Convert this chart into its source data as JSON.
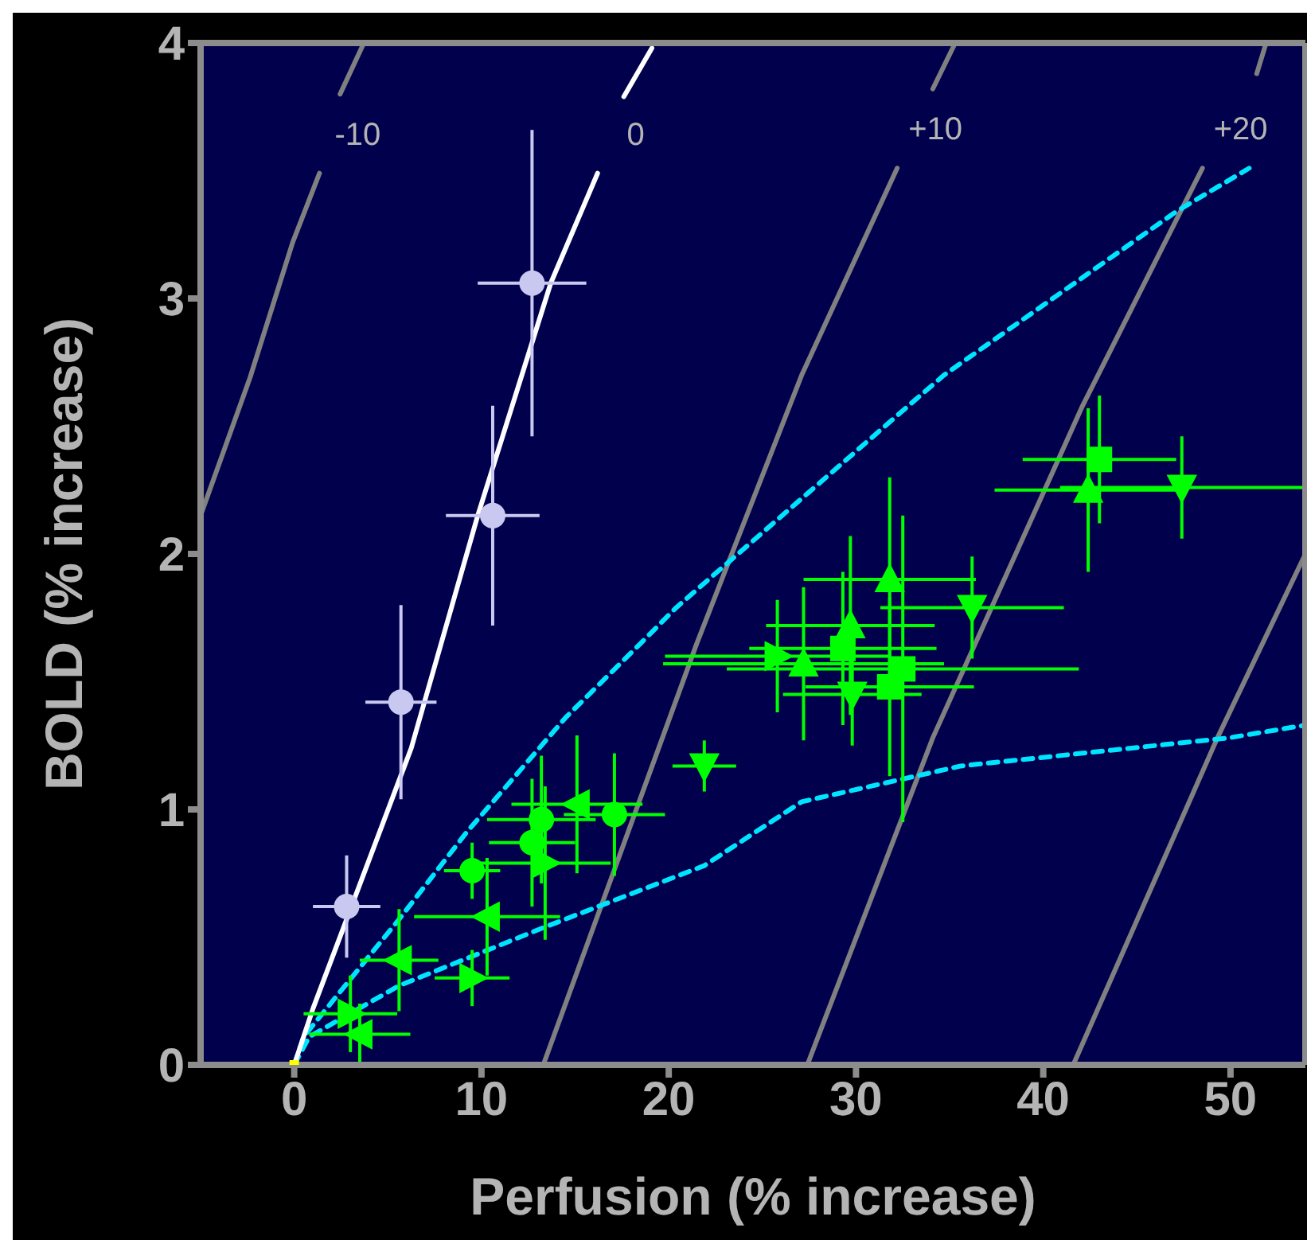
{
  "chart_data": {
    "type": "scatter",
    "xlabel": "Perfusion (% increase)",
    "ylabel": "BOLD (% increase)",
    "xlim": [
      -5,
      54
    ],
    "ylim": [
      0,
      4
    ],
    "xticks": [
      0,
      10,
      20,
      30,
      40,
      50
    ],
    "yticks": [
      0,
      1,
      2,
      3,
      4
    ],
    "grid": false,
    "series": [
      {
        "type": "line",
        "name": "-10",
        "color": "#808080",
        "line_style": "solid",
        "marker": "none",
        "x": [
          -5,
          -2.36,
          -0.08,
          1.35,
          1.9,
          2.45,
          3.72
        ],
        "values": [
          2.15,
          2.69,
          3.22,
          3.49,
          null,
          3.8,
          4.0
        ]
      },
      {
        "type": "line",
        "color": "#808080",
        "line_style": "solid",
        "marker": "none",
        "x": [
          41.6,
          49.3,
          54
        ],
        "values": [
          0,
          1.28,
          2.0
        ]
      },
      {
        "type": "line",
        "name": "+10",
        "color": "#808080",
        "line_style": "solid",
        "marker": "none",
        "x": [
          13.3,
          21.5,
          27.1,
          32.2,
          33.2,
          34.1,
          35.3
        ],
        "values": [
          0,
          1.65,
          2.7,
          3.51,
          null,
          3.82,
          4.0
        ]
      },
      {
        "type": "line",
        "name": "+20",
        "color": "#808080",
        "line_style": "solid",
        "marker": "none",
        "x": [
          27.4,
          34.1,
          42.1,
          48.5,
          50.0,
          51.4,
          51.9
        ],
        "values": [
          0,
          1.28,
          2.58,
          3.51,
          null,
          3.88,
          4.0
        ]
      },
      {
        "type": "line",
        "color": "#00e5ff",
        "line_style": "dashed",
        "marker": "none",
        "x": [
          0,
          0.5,
          5.6,
          9.2,
          14.5,
          18.5,
          20.4,
          32.8,
          34.7,
          47.1,
          51.0
        ],
        "values": [
          0,
          0.11,
          0.57,
          0.91,
          1.36,
          1.65,
          1.79,
          2.58,
          2.7,
          3.34,
          3.51
        ]
      },
      {
        "type": "line",
        "color": "#00e5ff",
        "line_style": "dashed",
        "marker": "none",
        "x": [
          0,
          0.8,
          5.6,
          13.4,
          21.9,
          27.1,
          35.6,
          49.9,
          54
        ],
        "values": [
          0,
          0.11,
          0.31,
          0.54,
          0.78,
          1.03,
          1.17,
          1.28,
          1.33
        ]
      },
      {
        "type": "line",
        "name": "0",
        "color": "#ffffff",
        "line_style": "solid",
        "marker": "none",
        "x": [
          0,
          1.0,
          6.25,
          9.8,
          13.7,
          16.2,
          16.9,
          17.6,
          19.1
        ],
        "values": [
          0,
          0.22,
          1.24,
          2.15,
          3.06,
          3.49,
          null,
          3.79,
          3.98
        ]
      },
      {
        "type": "scatter",
        "color": "#c8c8f0",
        "marker": "circle",
        "x": [
          2.8,
          5.7,
          10.6,
          12.7
        ],
        "values": [
          0.62,
          1.42,
          2.15,
          3.06
        ],
        "xerrors": [
          1.8,
          1.9,
          2.5,
          2.9
        ],
        "errors": [
          0.2,
          0.38,
          0.43,
          0.6
        ]
      },
      {
        "type": "scatter",
        "color": "#00ff00",
        "marker": "circle",
        "x": [
          9.5,
          12.7,
          13.2,
          17.1
        ],
        "values": [
          0.76,
          0.87,
          0.96,
          0.98
        ],
        "xerrors": [
          1.5,
          2.3,
          2.9,
          2.7
        ],
        "errors": [
          0.11,
          0.25,
          0.25,
          0.24
        ]
      },
      {
        "type": "scatter",
        "color": "#00ff00",
        "marker": "triangle",
        "x": [
          27.2,
          29.7,
          31.8,
          42.4
        ],
        "values": [
          1.57,
          1.72,
          1.9,
          2.25
        ],
        "xerrors": [
          7.5,
          4.5,
          4.6,
          5
        ],
        "errors": [
          0.3,
          0.35,
          0.4,
          0.32
        ]
      },
      {
        "type": "scatter",
        "color": "#00ff00",
        "marker": "triangle-down",
        "x": [
          21.9,
          29.8,
          36.2,
          47.4
        ],
        "values": [
          1.17,
          1.45,
          1.79,
          2.26
        ],
        "xerrors": [
          1.7,
          3.7,
          4.9,
          6.5
        ],
        "errors": [
          0.1,
          0.2,
          0.2,
          0.2
        ]
      },
      {
        "type": "scatter",
        "color": "#00ff00",
        "marker": "square",
        "x": [
          29.3,
          31.8,
          32.5,
          43.0
        ],
        "values": [
          1.63,
          1.48,
          1.55,
          2.37
        ],
        "xerrors": [
          5,
          4.5,
          9.4,
          4.1
        ],
        "errors": [
          0.3,
          0.35,
          0.6,
          0.25
        ]
      },
      {
        "type": "scatter",
        "color": "#00ff00",
        "marker": "triangle-left",
        "x": [
          15.1,
          10.3,
          5.6,
          3.5
        ],
        "values": [
          1.02,
          0.58,
          0.41,
          0.12
        ],
        "xerrors": [
          3.5,
          3.9,
          2.1,
          2.7
        ],
        "errors": [
          0.27,
          0.23,
          0.2,
          0.12
        ]
      },
      {
        "type": "scatter",
        "color": "#00ff00",
        "marker": "triangle-right",
        "x": [
          13.4,
          9.5,
          3.0,
          25.8
        ],
        "values": [
          0.79,
          0.34,
          0.2,
          1.6
        ],
        "xerrors": [
          3.5,
          2,
          2.5,
          6
        ],
        "errors": [
          0.3,
          0.11,
          0.15,
          0.22
        ]
      },
      {
        "type": "scatter",
        "color": "#ffff00",
        "marker": "square",
        "x": [
          0
        ],
        "values": [
          0
        ]
      }
    ]
  }
}
